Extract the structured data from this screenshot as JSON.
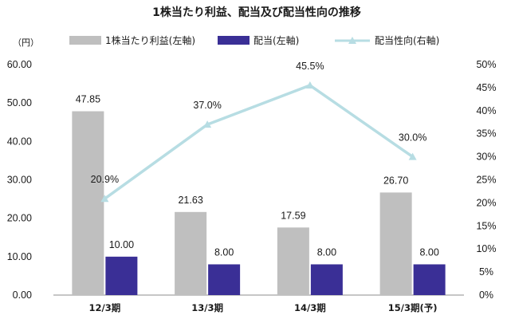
{
  "chart_data": {
    "type": "bar",
    "title": "1株当たり利益、配当及び配当性向の推移",
    "y_left_unit": "（円）",
    "categories": [
      "12/3期",
      "13/3期",
      "14/3期",
      "15/3期(予)"
    ],
    "series": [
      {
        "name": "1株当たり利益(左軸)",
        "type": "bar",
        "axis": "left",
        "color": "#bfbfbf",
        "values": [
          47.85,
          21.63,
          17.59,
          26.7
        ],
        "labels": [
          "47.85",
          "21.63",
          "17.59",
          "26.70"
        ]
      },
      {
        "name": "配当(左軸)",
        "type": "bar",
        "axis": "left",
        "color": "#3a2f96",
        "values": [
          10.0,
          8.0,
          8.0,
          8.0
        ],
        "labels": [
          "10.00",
          "8.00",
          "8.00",
          "8.00"
        ]
      },
      {
        "name": "配当性向(右軸)",
        "type": "line",
        "axis": "right",
        "color": "#b7dde3",
        "marker": "triangle",
        "values": [
          20.9,
          37.0,
          45.5,
          30.0
        ],
        "labels": [
          "20.9%",
          "37.0%",
          "45.5%",
          "30.0%"
        ]
      }
    ],
    "y_left": {
      "ylim": [
        0,
        60
      ],
      "ticks": [
        "0.00",
        "10.00",
        "20.00",
        "30.00",
        "40.00",
        "50.00",
        "60.00"
      ]
    },
    "y_right": {
      "ylim": [
        0,
        50
      ],
      "ticks": [
        "0%",
        "5%",
        "10%",
        "15%",
        "20%",
        "25%",
        "30%",
        "35%",
        "40%",
        "45%",
        "50%"
      ]
    },
    "grid": false,
    "legend_position": "top"
  }
}
